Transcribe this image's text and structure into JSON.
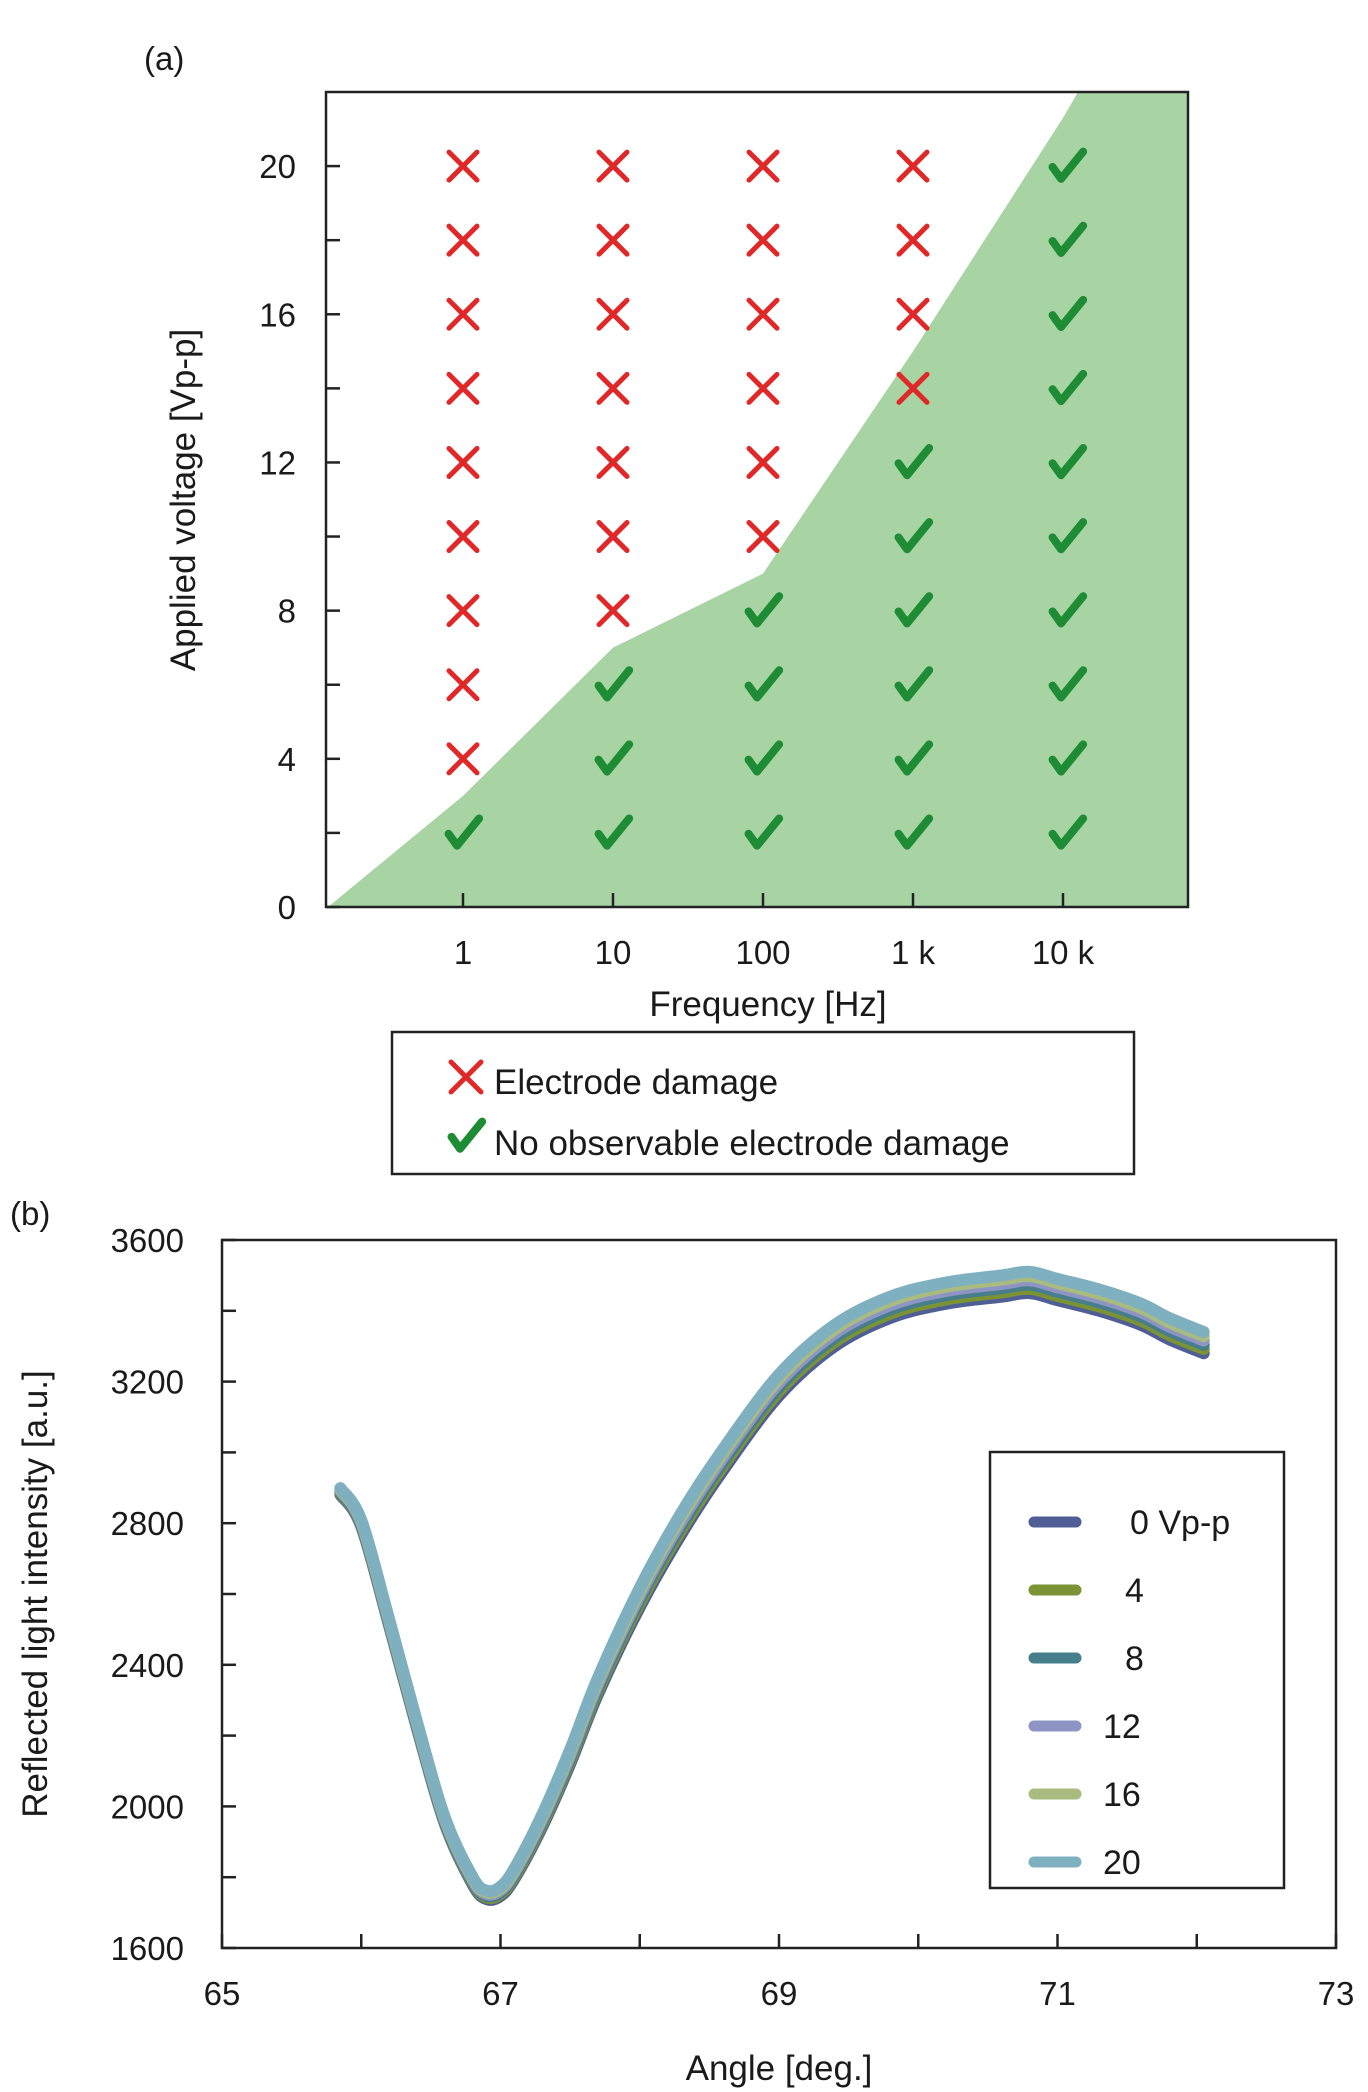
{
  "chart_data": [
    {
      "panel_label": "(a)",
      "type": "scatter",
      "xlabel": "Frequency [Hz]",
      "ylabel": "Applied voltage [Vp-p]",
      "x_ticks": [
        "1",
        "10",
        "100",
        "1 k",
        "10 k"
      ],
      "y_ticks": [
        "0",
        "4",
        "8",
        "12",
        "16",
        "20"
      ],
      "ylim": [
        0,
        22
      ],
      "voltages": [
        2,
        4,
        6,
        8,
        10,
        12,
        14,
        16,
        18,
        20
      ],
      "damage_threshold_voltage": [
        2,
        6,
        8,
        12,
        22
      ],
      "region_boundary": {
        "x_decade_index": [
          -0.9,
          0,
          1,
          2,
          3,
          4,
          4.1,
          5.0
        ],
        "voltage": [
          0,
          3,
          7,
          9,
          15,
          21.3,
          22,
          22
        ]
      },
      "legend": {
        "damage": "Electrode damage",
        "no_damage": "No observable electrode damage"
      },
      "colors": {
        "damage": "#e02828",
        "no_damage": "#1e8c34",
        "region": "#a8d4a4"
      }
    },
    {
      "panel_label": "(b)",
      "type": "line",
      "xlabel": "Angle [deg.]",
      "ylabel": "Reflected light intensity [a.u.]",
      "xlim": [
        65,
        73
      ],
      "ylim": [
        1600,
        3600
      ],
      "x_ticks": [
        "65",
        "67",
        "69",
        "71",
        "73"
      ],
      "y_ticks": [
        "1600",
        "2000",
        "2400",
        "2800",
        "3200",
        "3600"
      ],
      "curve_angle": [
        65.85,
        66.0,
        66.2,
        66.4,
        66.6,
        66.8,
        66.9,
        67.0,
        67.1,
        67.3,
        67.5,
        67.7,
        68.0,
        68.3,
        68.6,
        69.0,
        69.4,
        69.8,
        70.2,
        70.6,
        70.8,
        71.0,
        71.3,
        71.6,
        71.8,
        72.05
      ],
      "curve_intensity": [
        2890,
        2800,
        2520,
        2230,
        1960,
        1790,
        1750,
        1760,
        1810,
        1960,
        2140,
        2340,
        2590,
        2800,
        2980,
        3190,
        3330,
        3410,
        3450,
        3470,
        3480,
        3460,
        3430,
        3390,
        3350,
        3310
      ],
      "series": [
        {
          "name": "0 Vp-p",
          "offset": -30,
          "color": "#4f5f96"
        },
        {
          "name": "4",
          "offset": -18,
          "color": "#7b9235"
        },
        {
          "name": "8",
          "offset": -6,
          "color": "#467e8c"
        },
        {
          "name": "12",
          "offset": 6,
          "color": "#8e95c4"
        },
        {
          "name": "16",
          "offset": 18,
          "color": "#a9bb7e"
        },
        {
          "name": "20",
          "offset": 30,
          "color": "#7fb0c0"
        }
      ]
    }
  ]
}
